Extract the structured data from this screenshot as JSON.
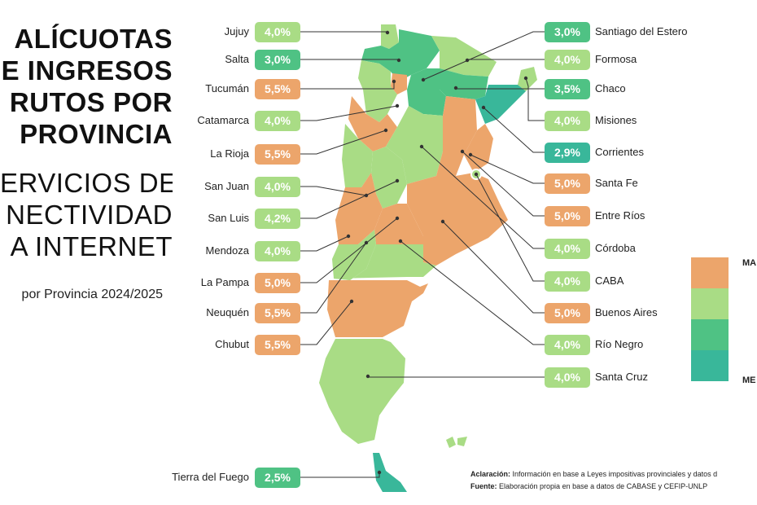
{
  "title_lines": [
    "ALÍCUOTAS",
    "E INGRESOS",
    "RUTOS POR",
    "PROVINCIA"
  ],
  "subtitle_lines": [
    "ERVICIOS DE",
    "NECTIVIDAD",
    "A INTERNET"
  ],
  "period": "por Provincia 2024/2025",
  "colors": {
    "orange": "#eca56b",
    "light_green": "#a9dc85",
    "green": "#4fc284",
    "teal": "#39b79a",
    "line": "#333333"
  },
  "provinces_left": [
    {
      "name": "Jujuy",
      "rate": "4,0%",
      "tier": "light_green"
    },
    {
      "name": "Salta",
      "rate": "3,0%",
      "tier": "green"
    },
    {
      "name": "Tucumán",
      "rate": "5,5%",
      "tier": "orange"
    },
    {
      "name": "Catamarca",
      "rate": "4,0%",
      "tier": "light_green"
    },
    {
      "name": "La Rioja",
      "rate": "5,5%",
      "tier": "orange"
    },
    {
      "name": "San Juan",
      "rate": "4,0%",
      "tier": "light_green"
    },
    {
      "name": "San Luis",
      "rate": "4,2%",
      "tier": "light_green"
    },
    {
      "name": "Mendoza",
      "rate": "4,0%",
      "tier": "light_green"
    },
    {
      "name": "La Pampa",
      "rate": "5,0%",
      "tier": "orange"
    },
    {
      "name": "Neuquén",
      "rate": "5,5%",
      "tier": "orange"
    },
    {
      "name": "Chubut",
      "rate": "5,5%",
      "tier": "orange"
    },
    {
      "name": "Tierra del Fuego",
      "rate": "2,5%",
      "tier": "green"
    }
  ],
  "provinces_right": [
    {
      "name": "Santiago del Estero",
      "rate": "3,0%",
      "tier": "green"
    },
    {
      "name": "Formosa",
      "rate": "4,0%",
      "tier": "light_green"
    },
    {
      "name": "Chaco",
      "rate": "3,5%",
      "tier": "green"
    },
    {
      "name": "Misiones",
      "rate": "4,0%",
      "tier": "light_green"
    },
    {
      "name": "Corrientes",
      "rate": "2,9%",
      "tier": "teal"
    },
    {
      "name": "Santa Fe",
      "rate": "5,0%",
      "tier": "orange"
    },
    {
      "name": "Entre Ríos",
      "rate": "5,0%",
      "tier": "orange"
    },
    {
      "name": "Córdoba",
      "rate": "4,0%",
      "tier": "light_green"
    },
    {
      "name": "CABA",
      "rate": "4,0%",
      "tier": "light_green"
    },
    {
      "name": "Buenos Aires",
      "rate": "5,0%",
      "tier": "orange"
    },
    {
      "name": "Río Negro",
      "rate": "4,0%",
      "tier": "light_green"
    },
    {
      "name": "Santa Cruz",
      "rate": "4,0%",
      "tier": "light_green"
    }
  ],
  "legend": {
    "top_label": "MA",
    "bottom_label": "ME",
    "tiers": [
      "orange",
      "light_green",
      "green",
      "teal"
    ]
  },
  "notes": {
    "aclaracion_label": "Aclaración:",
    "aclaracion_text": "Información en base a Leyes impositivas provinciales y datos d",
    "fuente_label": "Fuente:",
    "fuente_text": "Elaboración propia en base a datos de CABASE y CEFIP-UNLP"
  }
}
